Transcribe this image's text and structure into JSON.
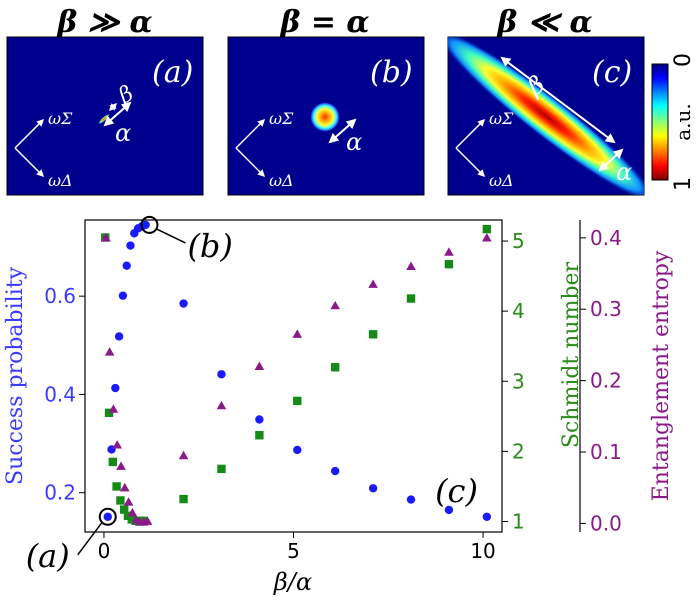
{
  "panels": [
    {
      "id": "a",
      "title": "β ≫ α",
      "label": "(a)",
      "sigma_axis": "ωΣ",
      "delta_axis": "ωΔ",
      "arrow_labels": [
        "β",
        "α"
      ]
    },
    {
      "id": "b",
      "title": "β = α",
      "label": "(b)",
      "sigma_axis": "ωΣ",
      "delta_axis": "ωΔ",
      "arrow_labels": [
        "α"
      ]
    },
    {
      "id": "c",
      "title": "β ≪ α",
      "label": "(c)",
      "sigma_axis": "ωΣ",
      "delta_axis": "ωΔ",
      "arrow_labels": [
        "β",
        "α"
      ]
    }
  ],
  "colorbar": {
    "label": "a.u.",
    "top_tick": "0",
    "bottom_tick": "1",
    "colors": [
      "#00007f",
      "#0000ff",
      "#00ffff",
      "#ffff00",
      "#ff0000",
      "#7f0000"
    ]
  },
  "chart_data": {
    "type": "scatter",
    "xlabel": "β/α",
    "xlim": [
      -0.5,
      10.5
    ],
    "xticks": [
      0,
      5,
      10
    ],
    "axes": [
      {
        "name": "Success probability",
        "ylabel": "Success probability",
        "side": "left",
        "ylim": [
          0.12,
          0.755
        ],
        "yticks": [
          0.2,
          0.4,
          0.6
        ],
        "color": "#3b3bff",
        "marker": "circle"
      },
      {
        "name": "Schmidt number",
        "ylabel": "Schmidt number",
        "side": "right",
        "ylim": [
          0.85,
          5.3
        ],
        "yticks": [
          1,
          2,
          3,
          4,
          5
        ],
        "color": "#2a8a1a",
        "marker": "square"
      },
      {
        "name": "Entanglement entropy",
        "ylabel": "Entanglement entropy",
        "side": "right-outer",
        "ylim": [
          -0.012,
          0.425
        ],
        "yticks": [
          0.0,
          0.1,
          0.2,
          0.3,
          0.4
        ],
        "color": "#8b1a89",
        "marker": "triangle"
      }
    ],
    "series": [
      {
        "name": "Success probability",
        "axis": 0,
        "color": "#1a1aff",
        "x": [
          0.1,
          0.2,
          0.3,
          0.4,
          0.5,
          0.6,
          0.7,
          0.8,
          0.9,
          1.0,
          1.1,
          2.1,
          3.1,
          4.1,
          5.1,
          6.1,
          7.1,
          8.1,
          9.1,
          10.1
        ],
        "y": [
          0.151,
          0.288,
          0.413,
          0.518,
          0.601,
          0.662,
          0.703,
          0.728,
          0.738,
          0.742,
          0.745,
          0.585,
          0.441,
          0.349,
          0.287,
          0.244,
          0.209,
          0.186,
          0.165,
          0.151
        ]
      },
      {
        "name": "Schmidt number",
        "axis": 1,
        "color": "#168a16",
        "x": [
          0.1,
          0.2,
          0.3,
          0.4,
          0.5,
          0.6,
          0.7,
          0.8,
          0.9,
          1.0,
          1.1,
          2.1,
          3.1,
          4.1,
          5.1,
          6.1,
          7.1,
          8.1,
          9.1,
          10.1
        ],
        "y": [
          5.05,
          2.55,
          1.85,
          1.5,
          1.3,
          1.17,
          1.08,
          1.03,
          1.01,
          1.0,
          1.01,
          1.32,
          1.75,
          2.23,
          2.72,
          3.2,
          3.67,
          4.18,
          4.67,
          5.17
        ],
        "note": "x values for squares near 0 are offset slightly left of circles"
      },
      {
        "name": "Entanglement entropy",
        "axis": 2,
        "color": "#8b1a89",
        "x": [
          0.05,
          0.15,
          0.25,
          0.35,
          0.45,
          0.55,
          0.65,
          0.75,
          0.85,
          0.95,
          1.05,
          1.15,
          2.1,
          3.1,
          4.1,
          5.1,
          6.1,
          7.1,
          8.1,
          9.1,
          10.1
        ],
        "y": [
          0.4,
          0.24,
          0.16,
          0.11,
          0.08,
          0.05,
          0.03,
          0.015,
          0.005,
          0.002,
          0.002,
          0.003,
          0.095,
          0.165,
          0.22,
          0.265,
          0.305,
          0.335,
          0.36,
          0.38,
          0.4
        ]
      }
    ],
    "annotations": [
      {
        "text": "(a)",
        "x": 0.1,
        "y": 0.151,
        "axis": 0
      },
      {
        "text": "(b)",
        "x": 1.2,
        "y": 0.745,
        "axis": 0
      },
      {
        "text": "(c)",
        "x": 9.3,
        "y": 0.205,
        "axis": 0
      }
    ]
  }
}
